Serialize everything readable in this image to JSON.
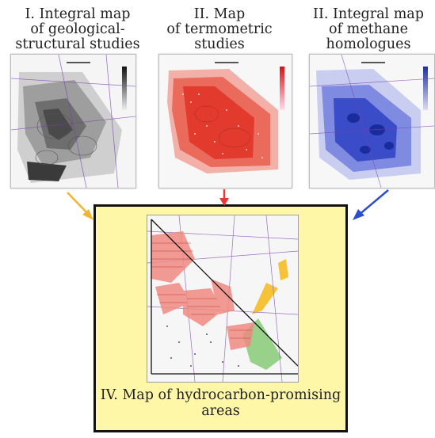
{
  "panels": [
    {
      "lines": [
        "I. Integral map",
        "of geological-",
        "structural studies"
      ],
      "color": "#000000"
    },
    {
      "lines": [
        "II. Map",
        "of termometric",
        "studies"
      ],
      "color": "#e53935"
    },
    {
      "lines": [
        "II. Integral map",
        "of methane",
        "homologues"
      ],
      "color": "#1e3fb5"
    }
  ],
  "result": {
    "lines": [
      "IV. Map of hydrocarbon-promising",
      "areas"
    ],
    "background": "#fff7a8"
  },
  "arrows": {
    "left_color": "#f2b533",
    "center_color": "#e53935",
    "right_color": "#2b4ed1"
  }
}
